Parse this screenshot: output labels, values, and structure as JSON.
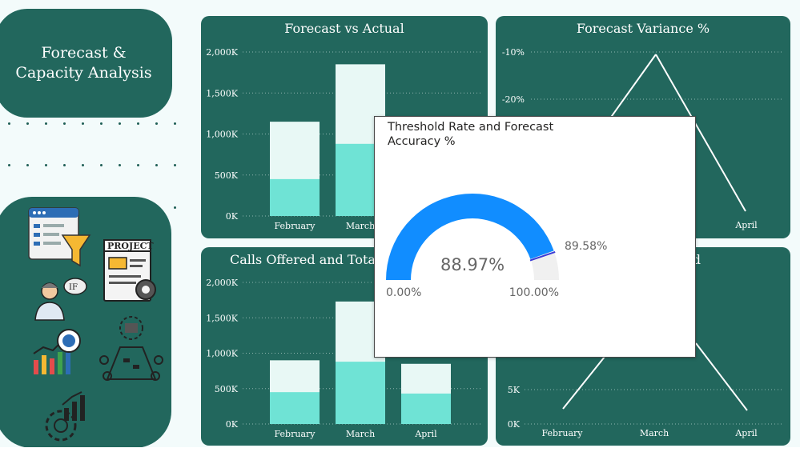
{
  "page_title": "Forecast & Capacity Analysis",
  "icons": [
    "dashboard-funnel-icon",
    "project-document-icon",
    "person-thinking-icon",
    "growth-chart-icon",
    "team-meeting-icon",
    "settings-growth-icon"
  ],
  "colors": {
    "panel": "#22675d",
    "bar_light": "#e8f8f5",
    "bar_accent": "#6fe3d5",
    "gauge_blue": "#118dff",
    "gauge_track": "#f0f0f0",
    "target_line": "#3b3bd6"
  },
  "panels": {
    "forecast_vs_actual": {
      "title": "Forecast vs Actual"
    },
    "forecast_variance": {
      "title": "Forecast Variance %"
    },
    "calls_offered": {
      "title": "Calls Offered and Total"
    },
    "bottom_right": {
      "title": "d"
    }
  },
  "chart_data": [
    {
      "type": "bar",
      "title": "Forecast vs Actual",
      "categories": [
        "February",
        "March"
      ],
      "series": [
        {
          "values": [
            1150000,
            1850000
          ]
        },
        {
          "values": [
            450000,
            880000
          ]
        }
      ],
      "y_ticks": [
        "2,000K",
        "1,500K",
        "1,000K",
        "500K",
        "0K"
      ],
      "ylim": [
        0,
        2000000
      ]
    },
    {
      "type": "line",
      "title": "Forecast Variance %",
      "categories": [
        "April"
      ],
      "y_ticks": [
        "-10%",
        "-20%"
      ]
    },
    {
      "type": "bar",
      "title": "Calls Offered and Total",
      "categories": [
        "February",
        "March",
        "April"
      ],
      "series": [
        {
          "values": [
            900000,
            1730000,
            850000
          ]
        },
        {
          "values": [
            450000,
            880000,
            430000
          ]
        }
      ],
      "y_ticks": [
        "2,000K",
        "1,500K",
        "1,000K",
        "500K",
        "0K"
      ],
      "ylim": [
        0,
        2000000
      ]
    },
    {
      "type": "line",
      "categories": [
        "February",
        "March",
        "April"
      ],
      "y_ticks": [
        "5K",
        "0K"
      ]
    }
  ],
  "tooltip": {
    "title": "Threshold Rate and Forecast Accuracy %",
    "gauge": {
      "value": 88.97,
      "value_label": "88.97%",
      "min_label": "0.00%",
      "max_label": "100.00%",
      "target": 89.58,
      "target_label": "89.58%"
    }
  }
}
